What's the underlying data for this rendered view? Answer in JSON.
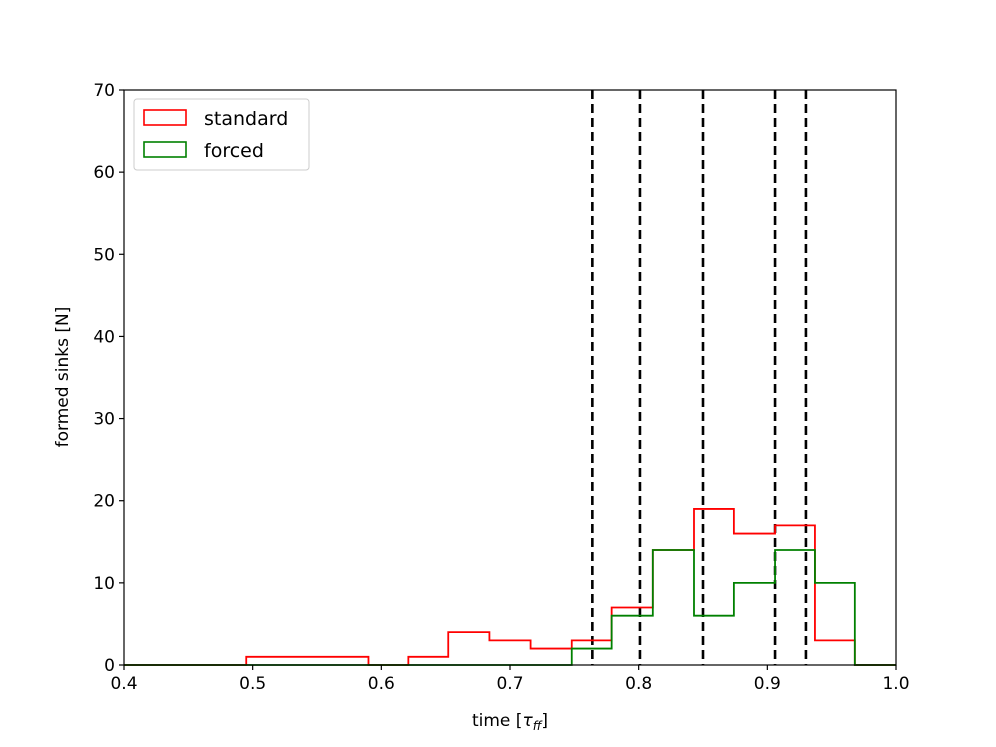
{
  "chart_data": {
    "type": "histogram",
    "title": "",
    "xlabel_prefix": "time [",
    "xlabel_symbol": "τ",
    "xlabel_subscript": "ff",
    "xlabel_suffix": "]",
    "ylabel": "formed sinks [N]",
    "xlim": [
      0.4,
      1.0
    ],
    "ylim": [
      0,
      70
    ],
    "xticks": [
      0.4,
      0.5,
      0.6,
      0.7,
      0.8,
      0.9,
      1.0
    ],
    "xtick_labels": [
      "0.4",
      "0.5",
      "0.6",
      "0.7",
      "0.8",
      "0.9",
      "1.0"
    ],
    "yticks": [
      0,
      10,
      20,
      30,
      40,
      50,
      60,
      70
    ],
    "ytick_labels": [
      "0",
      "10",
      "20",
      "30",
      "40",
      "50",
      "60",
      "70"
    ],
    "grid": false,
    "legend_position": "top-left",
    "series": [
      {
        "name": "standard",
        "color": "#ff0000",
        "bin_edges": [
          0.4,
          0.495,
          0.526,
          0.558,
          0.59,
          0.621,
          0.652,
          0.684,
          0.716,
          0.748,
          0.779,
          0.811,
          0.843,
          0.874,
          0.906,
          0.937,
          0.968,
          1.0
        ],
        "counts": [
          0,
          1,
          1,
          1,
          0,
          1,
          4,
          3,
          2,
          3,
          7,
          14,
          19,
          16,
          17,
          3,
          0
        ]
      },
      {
        "name": "forced",
        "color": "#008000",
        "bin_edges": [
          0.4,
          0.748,
          0.779,
          0.811,
          0.843,
          0.874,
          0.906,
          0.937,
          0.968,
          1.0
        ],
        "counts": [
          0,
          2,
          6,
          14,
          6,
          10,
          14,
          10,
          0
        ]
      }
    ],
    "vertical_lines": [
      0.764,
      0.801,
      0.85,
      0.906,
      0.93
    ],
    "vertical_line_style": "dashed",
    "vertical_line_color": "#000000"
  }
}
